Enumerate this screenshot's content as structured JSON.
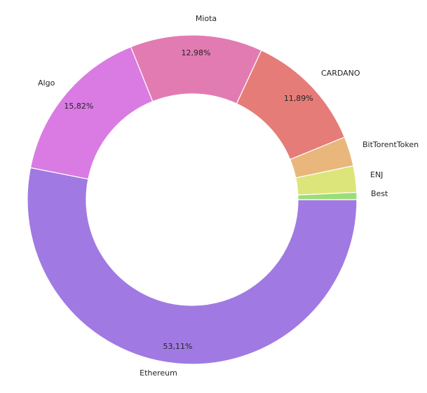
{
  "chart_data": {
    "type": "pie",
    "variant": "donut",
    "slices": [
      {
        "label": "Ethereum",
        "value": 53.11,
        "value_label": "53,11%",
        "color": "#A07AE2"
      },
      {
        "label": "Algo",
        "value": 15.82,
        "value_label": "15,82%",
        "color": "#D97BE3"
      },
      {
        "label": "Miota",
        "value": 12.98,
        "value_label": "12,98%",
        "color": "#E37BB3"
      },
      {
        "label": "CARDANO",
        "value": 11.89,
        "value_label": "11,89%",
        "color": "#E57C78"
      },
      {
        "label": "BitTorentToken",
        "value": 2.9,
        "value_label": "",
        "color": "#E9B77C"
      },
      {
        "label": "ENJ",
        "value": 2.6,
        "value_label": "",
        "color": "#DCE57A"
      },
      {
        "label": "Best",
        "value": 0.7,
        "value_label": "",
        "color": "#9BDD78"
      }
    ],
    "legend": "none"
  }
}
